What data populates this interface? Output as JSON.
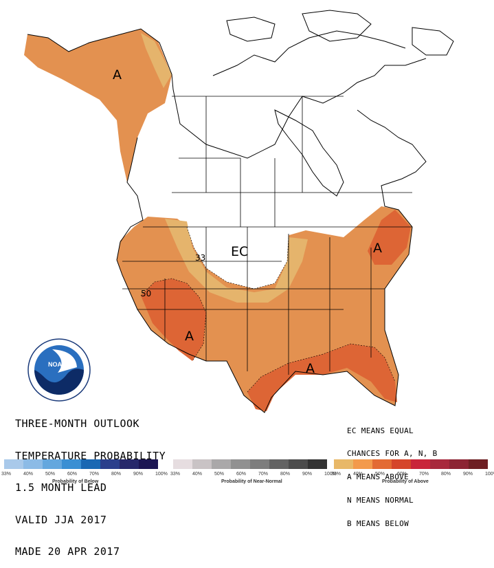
{
  "title_lines": [
    "THREE-MONTH OUTLOOK",
    "TEMPERATURE PROBABILITY",
    "1.5 MONTH LEAD",
    "VALID JJA 2017",
    "MADE 20 APR 2017"
  ],
  "legend_lines": [
    "EC MEANS EQUAL",
    "CHANCES FOR A, N, B",
    "A MEANS ABOVE",
    "N MEANS NORMAL",
    "B MEANS BELOW"
  ],
  "map_labels": {
    "alaska": "A",
    "northeast": "A",
    "southwest": "A",
    "gulf": "A",
    "ec": "EC",
    "contour_33": "33",
    "contour_50": "50"
  },
  "logo": {
    "text": "NOAA",
    "ring_text": "NATIONAL OCEANIC AND ATMOSPHERIC ADMINISTRATION",
    "ring_text_bottom": "U.S. DEPARTMENT OF COMMERCE"
  },
  "scales": [
    {
      "title": "Probability of Below",
      "colors": [
        "#a9c9ea",
        "#8cbbe6",
        "#64a7de",
        "#3a8fd3",
        "#1a68b3",
        "#2b3f8c",
        "#27286b",
        "#1c1654"
      ],
      "ticks": [
        "33%",
        "40%",
        "50%",
        "60%",
        "70%",
        "80%",
        "90%",
        "100%"
      ]
    },
    {
      "title": "Probability of Near-Normal",
      "colors": [
        "#e6dde0",
        "#c9c3c5",
        "#aaa8a9",
        "#919191",
        "#7d7d7d",
        "#636363",
        "#4c4c4c",
        "#333333"
      ],
      "ticks": [
        "33%",
        "40%",
        "50%",
        "60%",
        "70%",
        "80%",
        "90%",
        "100%"
      ]
    },
    {
      "title": "Probability of Above",
      "colors": [
        "#e8b868",
        "#f39a4c",
        "#e36a33",
        "#d5452a",
        "#c9253a",
        "#a8293c",
        "#8c2433",
        "#6e1f23"
      ],
      "ticks": [
        "33%",
        "40%",
        "50%",
        "60%",
        "70%",
        "80%",
        "90%",
        "100%"
      ]
    }
  ],
  "colors": {
    "above_33": "#e5b46c",
    "above_40": "#e39150",
    "above_50": "#dd6535"
  }
}
